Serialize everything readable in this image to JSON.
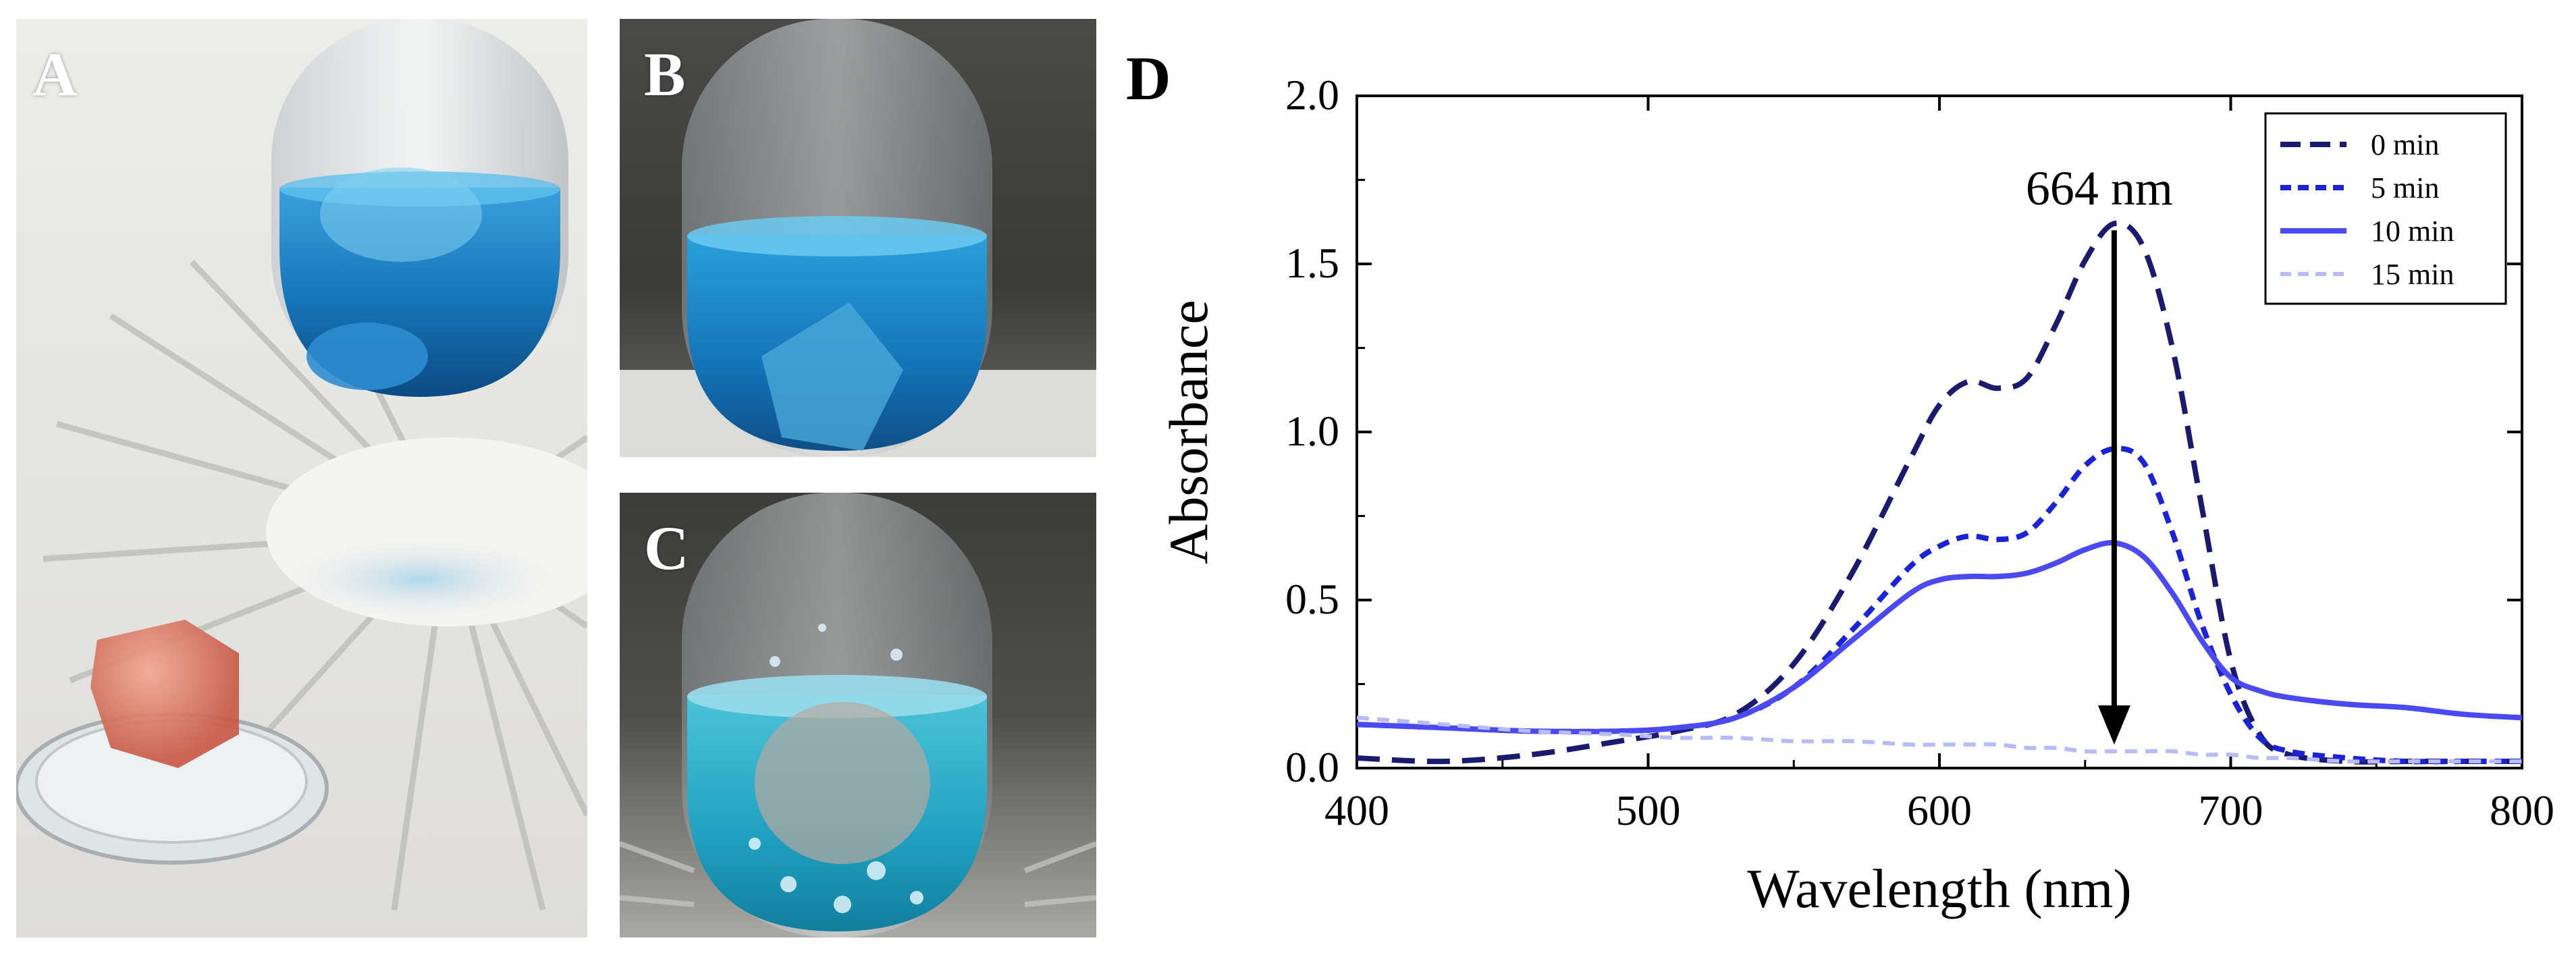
{
  "panels": {
    "a": {
      "letter": "A"
    },
    "b": {
      "letter": "B"
    },
    "c": {
      "letter": "C"
    },
    "d": {
      "letter": "D"
    }
  },
  "colors": {
    "series_0": "#1a1a6e",
    "series_5": "#1a24d6",
    "series_10": "#4a4af0",
    "series_15": "#b8bcf4",
    "blue_solution": "#1a7fc4",
    "cyan_solution": "#2ab0c8",
    "hydrogel": "#d9705e"
  },
  "chart_data": {
    "type": "line",
    "title": "",
    "xlabel": "Wavelength (nm)",
    "ylabel": "Absorbance",
    "xlim": [
      400,
      800
    ],
    "ylim": [
      0,
      2.0
    ],
    "xticks": [
      "400",
      "500",
      "600",
      "700",
      "800"
    ],
    "yticks": [
      "0.0",
      "0.5",
      "1.0",
      "1.5",
      "2.0"
    ],
    "grid": false,
    "legend_position": "top-right",
    "annotation": {
      "text": "664 nm",
      "x": 660,
      "y_start": 1.6,
      "y_end": 0.07
    },
    "series": [
      {
        "name": "0 min",
        "style": "long-dash",
        "x": [
          400,
          430,
          460,
          490,
          510,
          530,
          550,
          570,
          590,
          600,
          610,
          620,
          630,
          640,
          650,
          660,
          670,
          680,
          690,
          700,
          710,
          720,
          740,
          760,
          780,
          800
        ],
        "y": [
          0.03,
          0.02,
          0.04,
          0.08,
          0.11,
          0.16,
          0.31,
          0.58,
          0.92,
          1.08,
          1.15,
          1.13,
          1.16,
          1.32,
          1.51,
          1.62,
          1.55,
          1.25,
          0.78,
          0.32,
          0.1,
          0.04,
          0.02,
          0.02,
          0.02,
          0.02
        ]
      },
      {
        "name": "5 min",
        "style": "short-dash",
        "x": [
          400,
          430,
          460,
          490,
          510,
          530,
          550,
          570,
          590,
          600,
          610,
          620,
          630,
          640,
          650,
          660,
          670,
          680,
          690,
          700,
          710,
          720,
          740,
          760,
          780,
          800
        ],
        "y": [
          0.13,
          0.12,
          0.11,
          0.11,
          0.12,
          0.15,
          0.24,
          0.41,
          0.6,
          0.66,
          0.69,
          0.68,
          0.7,
          0.79,
          0.9,
          0.95,
          0.91,
          0.7,
          0.43,
          0.22,
          0.09,
          0.05,
          0.03,
          0.02,
          0.02,
          0.02
        ]
      },
      {
        "name": "10 min",
        "style": "solid",
        "x": [
          400,
          430,
          460,
          490,
          510,
          530,
          550,
          570,
          590,
          600,
          610,
          620,
          630,
          640,
          650,
          660,
          670,
          680,
          690,
          700,
          710,
          720,
          740,
          760,
          780,
          800
        ],
        "y": [
          0.13,
          0.12,
          0.11,
          0.11,
          0.12,
          0.15,
          0.24,
          0.38,
          0.52,
          0.56,
          0.57,
          0.57,
          0.58,
          0.61,
          0.65,
          0.67,
          0.63,
          0.52,
          0.38,
          0.27,
          0.23,
          0.21,
          0.19,
          0.18,
          0.16,
          0.15
        ]
      },
      {
        "name": "15 min",
        "style": "short-dash",
        "x": [
          400,
          430,
          460,
          490,
          510,
          530,
          550,
          570,
          590,
          600,
          610,
          620,
          630,
          640,
          650,
          660,
          670,
          680,
          690,
          700,
          710,
          720,
          740,
          760,
          780,
          800
        ],
        "y": [
          0.15,
          0.13,
          0.11,
          0.1,
          0.09,
          0.09,
          0.08,
          0.08,
          0.07,
          0.07,
          0.07,
          0.07,
          0.06,
          0.06,
          0.05,
          0.05,
          0.05,
          0.05,
          0.04,
          0.04,
          0.03,
          0.03,
          0.02,
          0.02,
          0.02,
          0.02
        ]
      }
    ]
  }
}
